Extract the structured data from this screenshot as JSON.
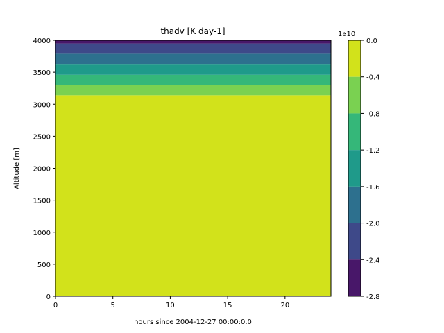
{
  "chart_data": {
    "type": "contourf",
    "title": "thadv [K day-1]",
    "xlabel": "hours since 2004-12-27 00:00:0.0",
    "ylabel": "Altitude [m]",
    "xlim": [
      0,
      24
    ],
    "ylim": [
      0,
      4000
    ],
    "xticks": [
      0,
      5,
      10,
      15,
      20
    ],
    "yticks": [
      0,
      500,
      1000,
      1500,
      2000,
      2500,
      3000,
      3500,
      4000
    ],
    "grid": false,
    "bands": [
      {
        "altitude_range": [
          0,
          3140
        ],
        "value_range": [
          -0.4,
          0.0
        ],
        "color": "#d2e21b"
      },
      {
        "altitude_range": [
          3140,
          3300
        ],
        "value_range": [
          -0.8,
          -0.4
        ],
        "color": "#7ad151"
      },
      {
        "altitude_range": [
          3300,
          3460
        ],
        "value_range": [
          -1.2,
          -0.8
        ],
        "color": "#35b779"
      },
      {
        "altitude_range": [
          3460,
          3630
        ],
        "value_range": [
          -1.6,
          -1.2
        ],
        "color": "#1f9a8a"
      },
      {
        "altitude_range": [
          3630,
          3790
        ],
        "value_range": [
          -2.0,
          -1.6
        ],
        "color": "#2d708e"
      },
      {
        "altitude_range": [
          3790,
          3950
        ],
        "value_range": [
          -2.4,
          -2.0
        ],
        "color": "#3e4989"
      },
      {
        "altitude_range": [
          3950,
          4000
        ],
        "value_range": [
          -2.8,
          -2.4
        ],
        "color": "#481769"
      }
    ],
    "colorbar": {
      "offset_label": "1e10",
      "ticks": [
        "0.0",
        "-0.4",
        "-0.8",
        "-1.2",
        "-1.6",
        "-2.0",
        "-2.4",
        "-2.8"
      ],
      "levels": [
        0.0,
        -0.4,
        -0.8,
        -1.2,
        -1.6,
        -2.0,
        -2.4,
        -2.8
      ],
      "colors": [
        "#d2e21b",
        "#7ad151",
        "#35b779",
        "#1f9a8a",
        "#2d708e",
        "#3e4989",
        "#481769"
      ]
    }
  }
}
